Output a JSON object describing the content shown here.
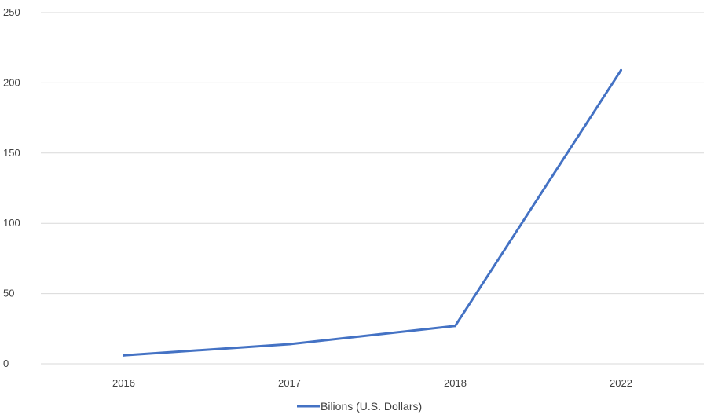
{
  "chart_data": {
    "type": "line",
    "categories": [
      "2016",
      "2017",
      "2018",
      "2022"
    ],
    "series": [
      {
        "name": "Bilions (U.S. Dollars)",
        "values": [
          6,
          14,
          27,
          209
        ],
        "color": "#4472C4"
      }
    ],
    "yticks": [
      "0",
      "50",
      "100",
      "150",
      "200",
      "250"
    ],
    "ylim": [
      0,
      250
    ],
    "grid": true,
    "legend": "bottom-center"
  }
}
